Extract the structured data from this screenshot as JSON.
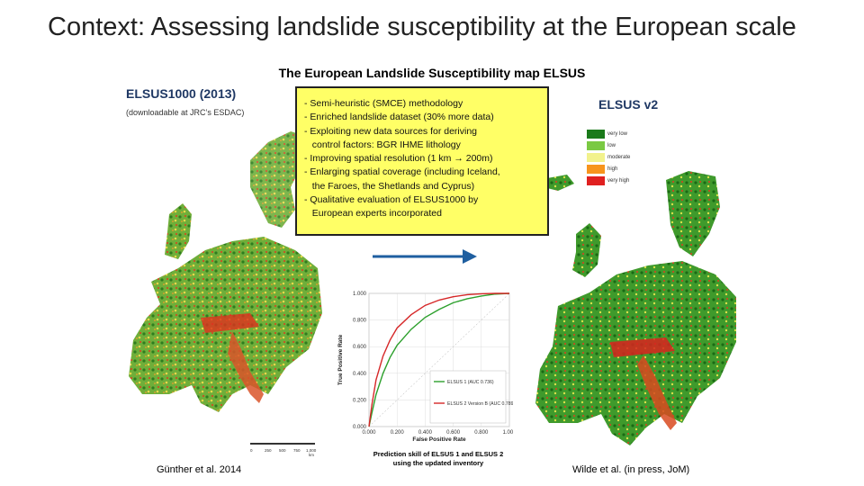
{
  "slide": {
    "title": "Context: Assessing landslide susceptibility at the European scale",
    "subtitle": "The European Landslide Susceptibility map ELSUS",
    "left_heading": "ELSUS1000 (2013)",
    "left_note": "(downloadable at JRC’s ESDAC)",
    "right_heading": "ELSUS v2",
    "left_citation": "Günther et al. 2014",
    "right_citation": "Wilde et al. (in press, JoM)"
  },
  "bullets": [
    "- Semi-heuristic (SMCE) methodology",
    "- Enriched landslide dataset (30% more data)",
    "- Exploiting new data sources for deriving",
    "   control factors: BGR IHME lithology",
    "- Improving spatial resolution (1 km → 200m)",
    "- Enlarging spatial coverage (including Iceland,",
    "   the Faroes, the Shetlands and Cyprus)",
    "- Qualitative evaluation of ELSUS1000 by",
    "   European experts incorporated"
  ],
  "legend": [
    {
      "label": "very low",
      "color": "#1a7a1a"
    },
    {
      "label": "low",
      "color": "#7ac943"
    },
    {
      "label": "moderate",
      "color": "#f2f28c"
    },
    {
      "label": "high",
      "color": "#f7941d"
    },
    {
      "label": "very high",
      "color": "#e02020"
    }
  ],
  "scalebar": {
    "labels": [
      "0",
      "250",
      "500",
      "750",
      "1,000"
    ],
    "unit": "km"
  },
  "colors": {
    "heading": "#1f3864",
    "box": "#ffff66",
    "arrow": "#1f5fa0"
  },
  "chart_data": {
    "type": "line",
    "xlabel": "False Positive Rate",
    "ylabel": "True Positive Rate",
    "xlim": [
      0,
      1
    ],
    "ylim": [
      0,
      1
    ],
    "x_ticks": [
      "0.000",
      "0.200",
      "0.400",
      "0.600",
      "0.800",
      "1.000"
    ],
    "y_ticks": [
      "0.000",
      "0.200",
      "0.400",
      "0.600",
      "0.800",
      "1.000"
    ],
    "caption": [
      "Prediction skill of ELSUS 1 and ELSUS 2",
      "using the updated inventory"
    ],
    "series": [
      {
        "name": "ELSUS 1 (AUC 0.736)",
        "color": "#2ca02c",
        "x": [
          0,
          0.02,
          0.05,
          0.1,
          0.15,
          0.2,
          0.3,
          0.4,
          0.5,
          0.6,
          0.7,
          0.8,
          0.9,
          1.0
        ],
        "y": [
          0,
          0.1,
          0.24,
          0.4,
          0.52,
          0.61,
          0.73,
          0.82,
          0.88,
          0.93,
          0.96,
          0.98,
          0.995,
          1.0
        ]
      },
      {
        "name": "ELSUS 2 Version B (AUC 0.789)",
        "color": "#d62728",
        "x": [
          0,
          0.02,
          0.05,
          0.1,
          0.15,
          0.2,
          0.3,
          0.4,
          0.5,
          0.6,
          0.7,
          0.8,
          0.9,
          1.0
        ],
        "y": [
          0,
          0.16,
          0.35,
          0.53,
          0.65,
          0.74,
          0.84,
          0.91,
          0.95,
          0.975,
          0.99,
          0.997,
          1.0,
          1.0
        ]
      }
    ]
  }
}
